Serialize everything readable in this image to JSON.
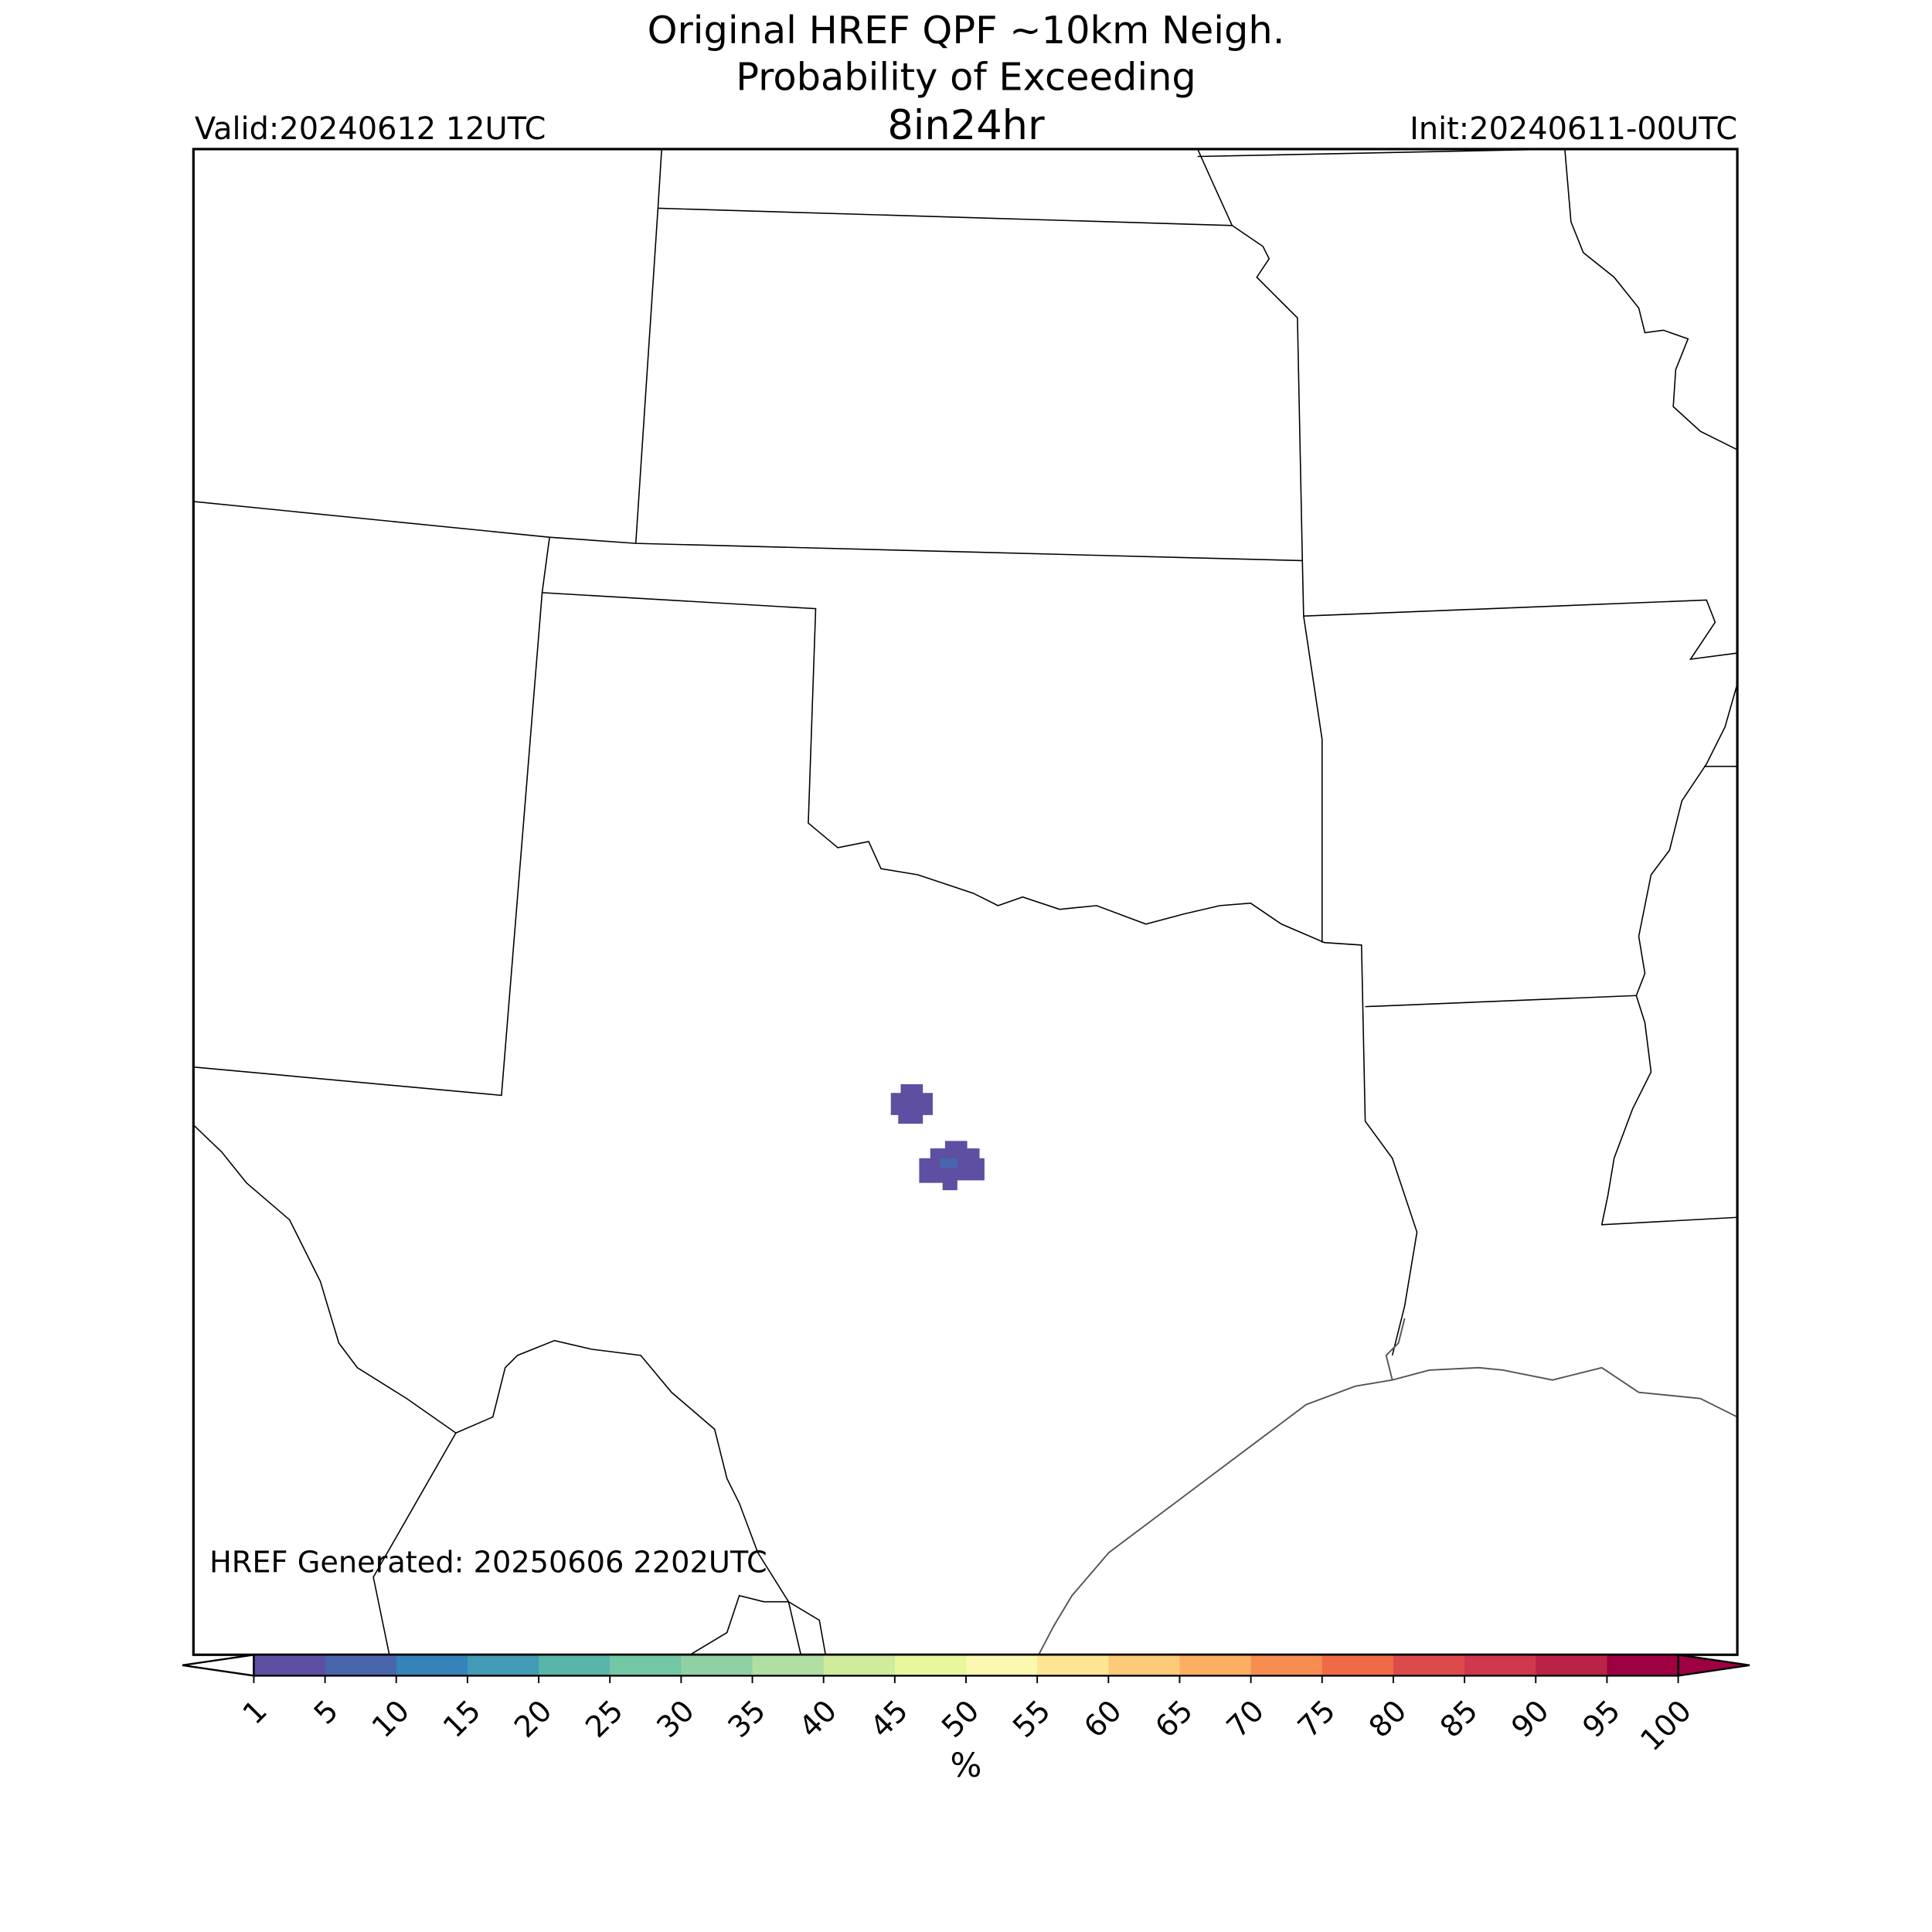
{
  "title": [
    "Original HREF QPF ~10km Neigh.",
    "Probability of Exceeding",
    "8in24hr"
  ],
  "valid": "Valid:20240612 12UTC",
  "init": "Init:20240611-00UTC",
  "generated": "HREF Generated: 20250606 2202UTC",
  "colorbar": {
    "ticks": [
      1,
      5,
      10,
      15,
      20,
      25,
      30,
      35,
      40,
      45,
      50,
      55,
      60,
      65,
      70,
      75,
      80,
      85,
      90,
      95,
      100
    ],
    "colors": [
      "#5e4fa2",
      "#4965ad",
      "#3682ba",
      "#439bb5",
      "#59b4aa",
      "#74c7a5",
      "#90d1a4",
      "#b0dea3",
      "#cfeb9c",
      "#e8f69c",
      "#fbf8b0",
      "#fee593",
      "#fdca79",
      "#fdaf61",
      "#f88d52",
      "#f06b45",
      "#dd4a4c",
      "#cf384d",
      "#bb2248",
      "#9e0142"
    ],
    "under_color": "#ffffff",
    "over_color": "#9e0142",
    "label": "%"
  },
  "shaded_areas": [
    {
      "level": 1
    },
    {
      "level": 1
    },
    {
      "level": 5
    }
  ]
}
